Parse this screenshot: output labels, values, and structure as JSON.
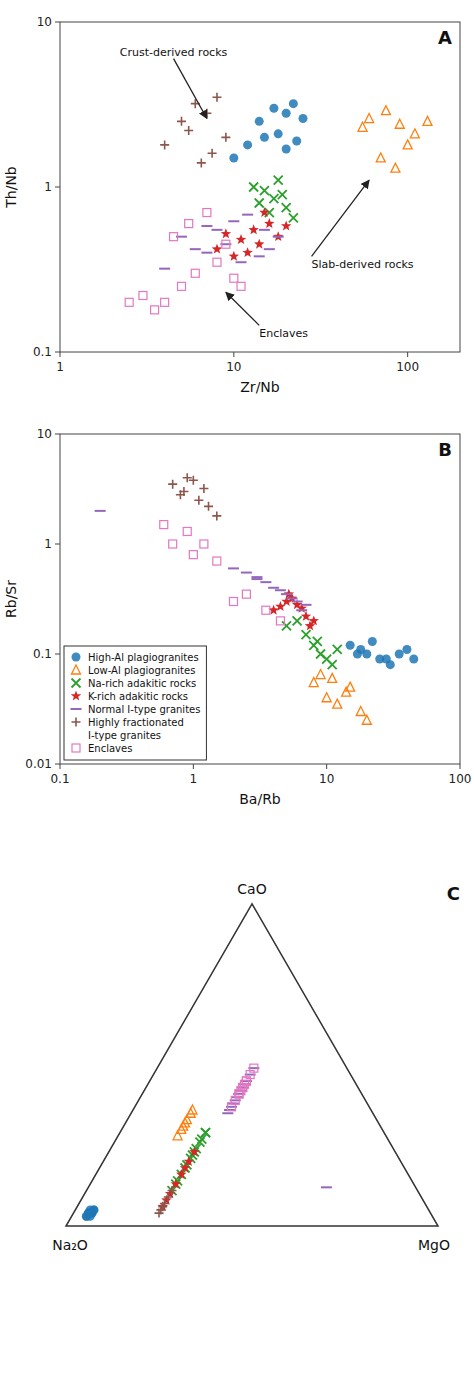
{
  "chart_data": [
    {
      "type": "scatter",
      "log": true,
      "panel_label": "A",
      "xlabel": "Zr/Nb",
      "ylabel": "Th/Nb",
      "xlim": [
        1,
        200
      ],
      "ylim": [
        0.1,
        10
      ],
      "xticks": [
        1,
        10,
        100
      ],
      "yticks": [
        0.1,
        1,
        10
      ],
      "series": [
        {
          "color": "#1f77b4",
          "marker": "circle",
          "x": [
            14,
            17,
            20,
            22,
            25,
            12,
            15,
            18,
            20,
            23,
            10
          ],
          "values": [
            2.5,
            3.0,
            2.8,
            3.2,
            2.6,
            1.8,
            2.0,
            2.1,
            1.7,
            1.9,
            1.5
          ]
        },
        {
          "color": "#ff7f0e",
          "marker": "triangle-open",
          "x": [
            60,
            75,
            90,
            110,
            70,
            85,
            55,
            100,
            130
          ],
          "values": [
            2.6,
            2.9,
            2.4,
            2.1,
            1.5,
            1.3,
            2.3,
            1.8,
            2.5
          ]
        },
        {
          "color": "#2ca02c",
          "marker": "x",
          "x": [
            13,
            15,
            17,
            20,
            22,
            18,
            14,
            16,
            19
          ],
          "values": [
            1.0,
            0.95,
            0.85,
            0.75,
            0.65,
            1.1,
            0.8,
            0.7,
            0.9
          ]
        },
        {
          "color": "#d62728",
          "marker": "star",
          "x": [
            8,
            10,
            12,
            14,
            9,
            11,
            13,
            16,
            15,
            18,
            20
          ],
          "values": [
            0.42,
            0.38,
            0.4,
            0.45,
            0.52,
            0.48,
            0.55,
            0.6,
            0.7,
            0.5,
            0.58
          ]
        },
        {
          "color": "#9467bd",
          "marker": "hline",
          "x": [
            5,
            7,
            8,
            10,
            12,
            6,
            9,
            11,
            14,
            16,
            18,
            4,
            7,
            15
          ],
          "values": [
            0.5,
            0.58,
            0.55,
            0.62,
            0.68,
            0.42,
            0.45,
            0.35,
            0.38,
            0.42,
            0.5,
            0.32,
            0.4,
            0.55
          ]
        },
        {
          "color": "#8c564b",
          "marker": "plus",
          "x": [
            5,
            7,
            9,
            6,
            8,
            4,
            5.5,
            7.5,
            6.5
          ],
          "values": [
            2.5,
            2.8,
            2.0,
            3.2,
            3.5,
            1.8,
            2.2,
            1.6,
            1.4
          ]
        },
        {
          "color": "#e377c2",
          "marker": "square-open",
          "x": [
            3,
            4,
            5,
            6,
            3.5,
            8,
            4.5,
            5.5,
            7,
            9,
            10,
            11,
            2.5
          ],
          "values": [
            0.22,
            0.2,
            0.25,
            0.3,
            0.18,
            0.35,
            0.5,
            0.6,
            0.7,
            0.45,
            0.28,
            0.25,
            0.2
          ]
        }
      ],
      "annotations": [
        {
          "text": "Crust-derived rocks",
          "x": 7,
          "y": 2.6,
          "text_x": 4.5,
          "text_y": 6.0
        },
        {
          "text": "Slab-derived rocks",
          "x": 60,
          "y": 1.1,
          "text_x": 28,
          "text_y": 0.38
        },
        {
          "text": "Enclaves",
          "x": 9,
          "y": 0.23,
          "text_x": 14,
          "text_y": 0.145
        }
      ]
    },
    {
      "type": "scatter",
      "log": true,
      "panel_label": "B",
      "xlabel": "Ba/Rb",
      "ylabel": "Rb/Sr",
      "xlim": [
        0.1,
        100
      ],
      "ylim": [
        0.01,
        10
      ],
      "xticks": [
        0.1,
        1,
        10,
        100
      ],
      "yticks": [
        0.01,
        0.1,
        1,
        10
      ],
      "legend": "lower left",
      "series": [
        {
          "name": "High-Al plagiogranites",
          "color": "#1f77b4",
          "marker": "circle",
          "x": [
            15,
            20,
            18,
            25,
            22,
            17,
            30,
            28,
            35,
            40,
            45
          ],
          "values": [
            0.12,
            0.1,
            0.11,
            0.09,
            0.13,
            0.1,
            0.08,
            0.09,
            0.1,
            0.11,
            0.09
          ]
        },
        {
          "name": "Low-Al plagiogranites",
          "color": "#ff7f0e",
          "marker": "triangle-open",
          "x": [
            8,
            10,
            12,
            15,
            9,
            11,
            14,
            20,
            18
          ],
          "values": [
            0.055,
            0.04,
            0.035,
            0.05,
            0.065,
            0.06,
            0.045,
            0.025,
            0.03
          ]
        },
        {
          "name": "Na-rich adakitic rocks",
          "color": "#2ca02c",
          "marker": "x",
          "x": [
            5,
            7,
            8,
            9,
            6,
            10,
            11,
            12,
            8.5
          ],
          "values": [
            0.18,
            0.15,
            0.12,
            0.1,
            0.2,
            0.09,
            0.08,
            0.11,
            0.13
          ]
        },
        {
          "name": "K-rich adakitic rocks",
          "color": "#d62728",
          "marker": "star",
          "x": [
            4,
            5,
            6,
            7,
            8,
            5.5,
            6.5,
            4.5,
            7.5,
            5.2
          ],
          "values": [
            0.25,
            0.3,
            0.28,
            0.22,
            0.2,
            0.32,
            0.26,
            0.27,
            0.18,
            0.35
          ]
        },
        {
          "name": "Normal I-type granites",
          "color": "#9467bd",
          "marker": "hline",
          "x": [
            2,
            3,
            4,
            5,
            6,
            7,
            2.5,
            3.5,
            4.5,
            5.5,
            6.5,
            3.0,
            0.2
          ],
          "values": [
            0.6,
            0.5,
            0.4,
            0.35,
            0.3,
            0.28,
            0.55,
            0.45,
            0.38,
            0.32,
            0.25,
            0.48,
            2.0
          ]
        },
        {
          "name": "Highly fractionated\nI-type granites",
          "color": "#8c564b",
          "marker": "plus",
          "x": [
            0.7,
            0.9,
            1.0,
            1.2,
            0.8,
            1.1,
            1.3,
            1.5,
            0.85
          ],
          "values": [
            3.5,
            4.0,
            3.8,
            3.2,
            2.8,
            2.5,
            2.2,
            1.8,
            3.0
          ]
        },
        {
          "name": "Enclaves",
          "color": "#e377c2",
          "marker": "square-open",
          "x": [
            0.6,
            0.7,
            1.0,
            1.5,
            2.5,
            1.2,
            2.0,
            3.5,
            4.5,
            0.9
          ],
          "values": [
            1.5,
            1.0,
            0.8,
            0.7,
            0.35,
            1.0,
            0.3,
            0.25,
            0.2,
            1.3
          ]
        }
      ]
    },
    {
      "type": "ternary",
      "panel_label": "C",
      "axis_labels": [
        "CaO",
        "Na₂O",
        "MgO"
      ],
      "series": [
        {
          "color": "#1f77b4",
          "marker": "circle",
          "values": [
            [
              0.04,
              0.91,
              0.05
            ],
            [
              0.03,
              0.93,
              0.04
            ],
            [
              0.04,
              0.92,
              0.04
            ],
            [
              0.05,
              0.9,
              0.05
            ],
            [
              0.03,
              0.92,
              0.05
            ],
            [
              0.04,
              0.91,
              0.05
            ],
            [
              0.05,
              0.9,
              0.05
            ],
            [
              0.04,
              0.92,
              0.04
            ],
            [
              0.03,
              0.93,
              0.04
            ],
            [
              0.05,
              0.91,
              0.04
            ]
          ]
        },
        {
          "color": "#ff7f0e",
          "marker": "triangle-open",
          "values": [
            [
              0.32,
              0.52,
              0.16
            ],
            [
              0.35,
              0.49,
              0.16
            ],
            [
              0.3,
              0.54,
              0.16
            ],
            [
              0.33,
              0.51,
              0.16
            ],
            [
              0.28,
              0.56,
              0.16
            ],
            [
              0.36,
              0.48,
              0.16
            ],
            [
              0.31,
              0.53,
              0.16
            ]
          ]
        },
        {
          "color": "#2ca02c",
          "marker": "x",
          "values": [
            [
              0.27,
              0.5,
              0.23
            ],
            [
              0.24,
              0.53,
              0.23
            ],
            [
              0.29,
              0.48,
              0.23
            ],
            [
              0.22,
              0.55,
              0.23
            ],
            [
              0.19,
              0.58,
              0.23
            ],
            [
              0.21,
              0.56,
              0.23
            ],
            [
              0.16,
              0.61,
              0.23
            ],
            [
              0.13,
              0.64,
              0.23
            ],
            [
              0.26,
              0.51,
              0.23
            ],
            [
              0.29,
              0.48,
              0.23
            ],
            [
              0.23,
              0.54,
              0.23
            ],
            [
              0.18,
              0.59,
              0.23
            ],
            [
              0.11,
              0.66,
              0.23
            ],
            [
              0.14,
              0.63,
              0.23
            ]
          ]
        },
        {
          "color": "#d62728",
          "marker": "star",
          "values": [
            [
              0.2,
              0.57,
              0.23
            ],
            [
              0.23,
              0.54,
              0.23
            ],
            [
              0.18,
              0.59,
              0.23
            ],
            [
              0.16,
              0.61,
              0.23
            ],
            [
              0.13,
              0.64,
              0.23
            ],
            [
              0.1,
              0.67,
              0.23
            ],
            [
              0.08,
              0.69,
              0.23
            ],
            [
              0.06,
              0.71,
              0.23
            ]
          ]
        },
        {
          "color": "#9467bd",
          "marker": "hline",
          "values": [
            [
              0.36,
              0.38,
              0.26
            ],
            [
              0.39,
              0.35,
              0.26
            ],
            [
              0.41,
              0.33,
              0.26
            ],
            [
              0.43,
              0.31,
              0.26
            ],
            [
              0.37,
              0.37,
              0.26
            ],
            [
              0.4,
              0.34,
              0.26
            ],
            [
              0.45,
              0.29,
              0.26
            ],
            [
              0.41,
              0.33,
              0.26
            ],
            [
              0.38,
              0.36,
              0.26
            ],
            [
              0.36,
              0.38,
              0.26
            ],
            [
              0.44,
              0.3,
              0.26
            ],
            [
              0.42,
              0.32,
              0.26
            ],
            [
              0.47,
              0.27,
              0.26
            ],
            [
              0.35,
              0.39,
              0.26
            ],
            [
              0.49,
              0.25,
              0.26
            ],
            [
              0.12,
              0.24,
              0.64
            ]
          ]
        },
        {
          "color": "#8c564b",
          "marker": "plus",
          "values": [
            [
              0.07,
              0.7,
              0.23
            ],
            [
              0.05,
              0.72,
              0.23
            ],
            [
              0.09,
              0.68,
              0.23
            ],
            [
              0.11,
              0.66,
              0.23
            ],
            [
              0.04,
              0.73,
              0.23
            ],
            [
              0.06,
              0.71,
              0.23
            ]
          ]
        },
        {
          "color": "#e377c2",
          "marker": "square-open",
          "values": [
            [
              0.41,
              0.33,
              0.26
            ],
            [
              0.43,
              0.31,
              0.26
            ],
            [
              0.45,
              0.29,
              0.26
            ],
            [
              0.39,
              0.35,
              0.26
            ],
            [
              0.47,
              0.27,
              0.26
            ],
            [
              0.41,
              0.33,
              0.26
            ],
            [
              0.43,
              0.31,
              0.26
            ],
            [
              0.45,
              0.29,
              0.26
            ],
            [
              0.37,
              0.37,
              0.26
            ],
            [
              0.49,
              0.25,
              0.26
            ],
            [
              0.44,
              0.3,
              0.26
            ],
            [
              0.42,
              0.32,
              0.26
            ]
          ]
        }
      ]
    }
  ]
}
